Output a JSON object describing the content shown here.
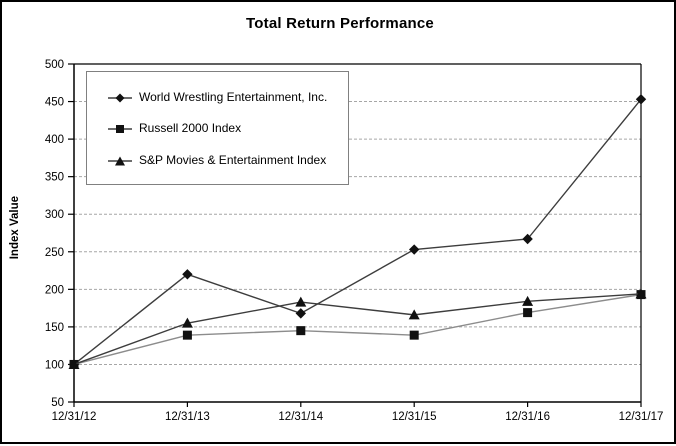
{
  "chart_data": {
    "type": "line",
    "title": "Total Return Performance",
    "ylabel": "Index Value",
    "xlabel": "",
    "ylim": [
      50,
      500
    ],
    "y_ticks": [
      50,
      100,
      150,
      200,
      250,
      300,
      350,
      400,
      450,
      500
    ],
    "categories": [
      "12/31/12",
      "12/31/13",
      "12/31/14",
      "12/31/15",
      "12/31/16",
      "12/31/17"
    ],
    "grid": "horizontal-dashed",
    "legend_position": "top-left-inside",
    "colors": {
      "axis": "#000000",
      "grid": "#a6a6a6",
      "legend_border": "#808080",
      "marker": "#111111"
    },
    "series": [
      {
        "name": "World Wrestling Entertainment, Inc.",
        "marker": "diamond",
        "line_color": "#3d3d3d",
        "values": [
          100,
          220,
          168,
          253,
          267,
          453
        ]
      },
      {
        "name": "Russell 2000 Index",
        "marker": "square",
        "line_color": "#8c8c8c",
        "values": [
          100,
          139,
          145,
          139,
          169,
          193
        ]
      },
      {
        "name": "S&P Movies & Entertainment Index",
        "marker": "triangle",
        "line_color": "#3d3d3d",
        "values": [
          100,
          155,
          183,
          166,
          184,
          194
        ]
      }
    ]
  }
}
